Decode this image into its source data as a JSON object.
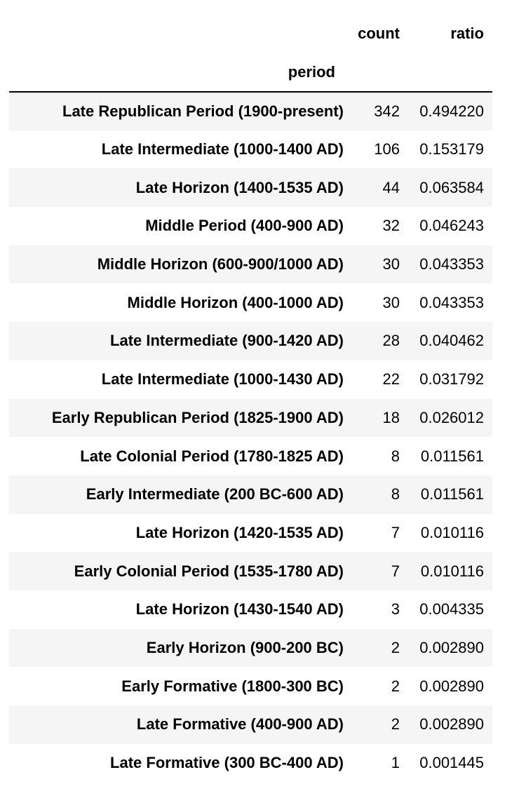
{
  "table": {
    "columns": [
      "count",
      "ratio"
    ],
    "index_name": "period",
    "rows": [
      {
        "period": "Late Republican Period (1900-present)",
        "count": "342",
        "ratio": "0.494220"
      },
      {
        "period": "Late Intermediate (1000-1400 AD)",
        "count": "106",
        "ratio": "0.153179"
      },
      {
        "period": "Late Horizon (1400-1535 AD)",
        "count": "44",
        "ratio": "0.063584"
      },
      {
        "period": "Middle Period (400-900 AD)",
        "count": "32",
        "ratio": "0.046243"
      },
      {
        "period": "Middle Horizon (600-900/1000 AD)",
        "count": "30",
        "ratio": "0.043353"
      },
      {
        "period": "Middle Horizon (400-1000 AD)",
        "count": "30",
        "ratio": "0.043353"
      },
      {
        "period": "Late Intermediate (900-1420 AD)",
        "count": "28",
        "ratio": "0.040462"
      },
      {
        "period": "Late Intermediate (1000-1430 AD)",
        "count": "22",
        "ratio": "0.031792"
      },
      {
        "period": "Early Republican Period (1825-1900 AD)",
        "count": "18",
        "ratio": "0.026012"
      },
      {
        "period": "Late Colonial Period (1780-1825 AD)",
        "count": "8",
        "ratio": "0.011561"
      },
      {
        "period": "Early Intermediate (200 BC-600 AD)",
        "count": "8",
        "ratio": "0.011561"
      },
      {
        "period": "Late Horizon (1420-1535 AD)",
        "count": "7",
        "ratio": "0.010116"
      },
      {
        "period": "Early Colonial Period (1535-1780 AD)",
        "count": "7",
        "ratio": "0.010116"
      },
      {
        "period": "Late Horizon (1430-1540 AD)",
        "count": "3",
        "ratio": "0.004335"
      },
      {
        "period": "Early Horizon (900-200 BC)",
        "count": "2",
        "ratio": "0.002890"
      },
      {
        "period": "Early Formative (1800-300 BC)",
        "count": "2",
        "ratio": "0.002890"
      },
      {
        "period": "Late Formative (400-900 AD)",
        "count": "2",
        "ratio": "0.002890"
      },
      {
        "period": "Late Formative (300 BC-400 AD)",
        "count": "1",
        "ratio": "0.001445"
      }
    ]
  }
}
